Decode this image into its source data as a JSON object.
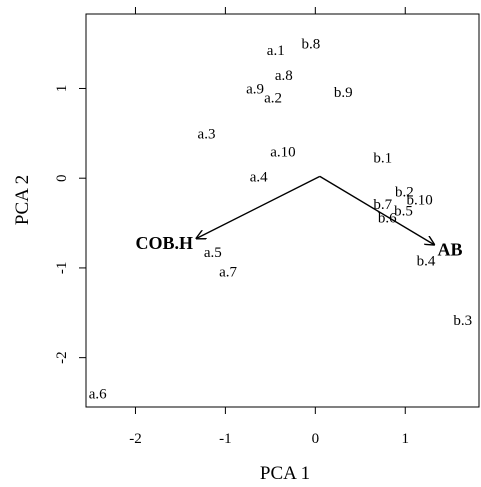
{
  "chart_data": {
    "type": "scatter",
    "subtype": "pca-biplot",
    "title": "",
    "xlabel": "PCA 1",
    "ylabel": "PCA 2",
    "xlim": [
      -2.55,
      1.82
    ],
    "ylim": [
      -2.55,
      1.83
    ],
    "xticks": [
      -2,
      -1,
      0,
      1
    ],
    "yticks": [
      -2,
      -1,
      0,
      1
    ],
    "xtick_labels": [
      "-2",
      "-1",
      "0",
      "1"
    ],
    "ytick_labels": [
      "-2",
      "-1",
      "0",
      "1"
    ],
    "grid": false,
    "legend": "none",
    "points": [
      {
        "label": "a.1",
        "x": -0.44,
        "y": 1.43
      },
      {
        "label": "b.8",
        "x": -0.05,
        "y": 1.5
      },
      {
        "label": "a.8",
        "x": -0.35,
        "y": 1.15
      },
      {
        "label": "a.9",
        "x": -0.67,
        "y": 1.0
      },
      {
        "label": "a.2",
        "x": -0.47,
        "y": 0.9
      },
      {
        "label": "b.9",
        "x": 0.31,
        "y": 0.96
      },
      {
        "label": "a.3",
        "x": -1.21,
        "y": 0.5
      },
      {
        "label": "a.10",
        "x": -0.36,
        "y": 0.3
      },
      {
        "label": "b.1",
        "x": 0.75,
        "y": 0.23
      },
      {
        "label": "a.4",
        "x": -0.63,
        "y": 0.02
      },
      {
        "label": "b.2",
        "x": 0.99,
        "y": -0.15
      },
      {
        "label": "b.10",
        "x": 1.16,
        "y": -0.24
      },
      {
        "label": "b.7",
        "x": 0.75,
        "y": -0.29
      },
      {
        "label": "b.5",
        "x": 0.98,
        "y": -0.36
      },
      {
        "label": "b.6",
        "x": 0.8,
        "y": -0.44
      },
      {
        "label": "a.5",
        "x": -1.14,
        "y": -0.82
      },
      {
        "label": "b.4",
        "x": 1.23,
        "y": -0.92
      },
      {
        "label": "a.7",
        "x": -0.97,
        "y": -1.04
      },
      {
        "label": "b.3",
        "x": 1.64,
        "y": -1.58
      },
      {
        "label": "a.6",
        "x": -2.42,
        "y": -2.4
      }
    ],
    "loadings_origin": [
      0.05,
      0.02
    ],
    "loadings": [
      {
        "label": "COB.H",
        "x": -1.32,
        "y": -0.67
      },
      {
        "label": "AB",
        "x": 1.32,
        "y": -0.74
      }
    ]
  }
}
